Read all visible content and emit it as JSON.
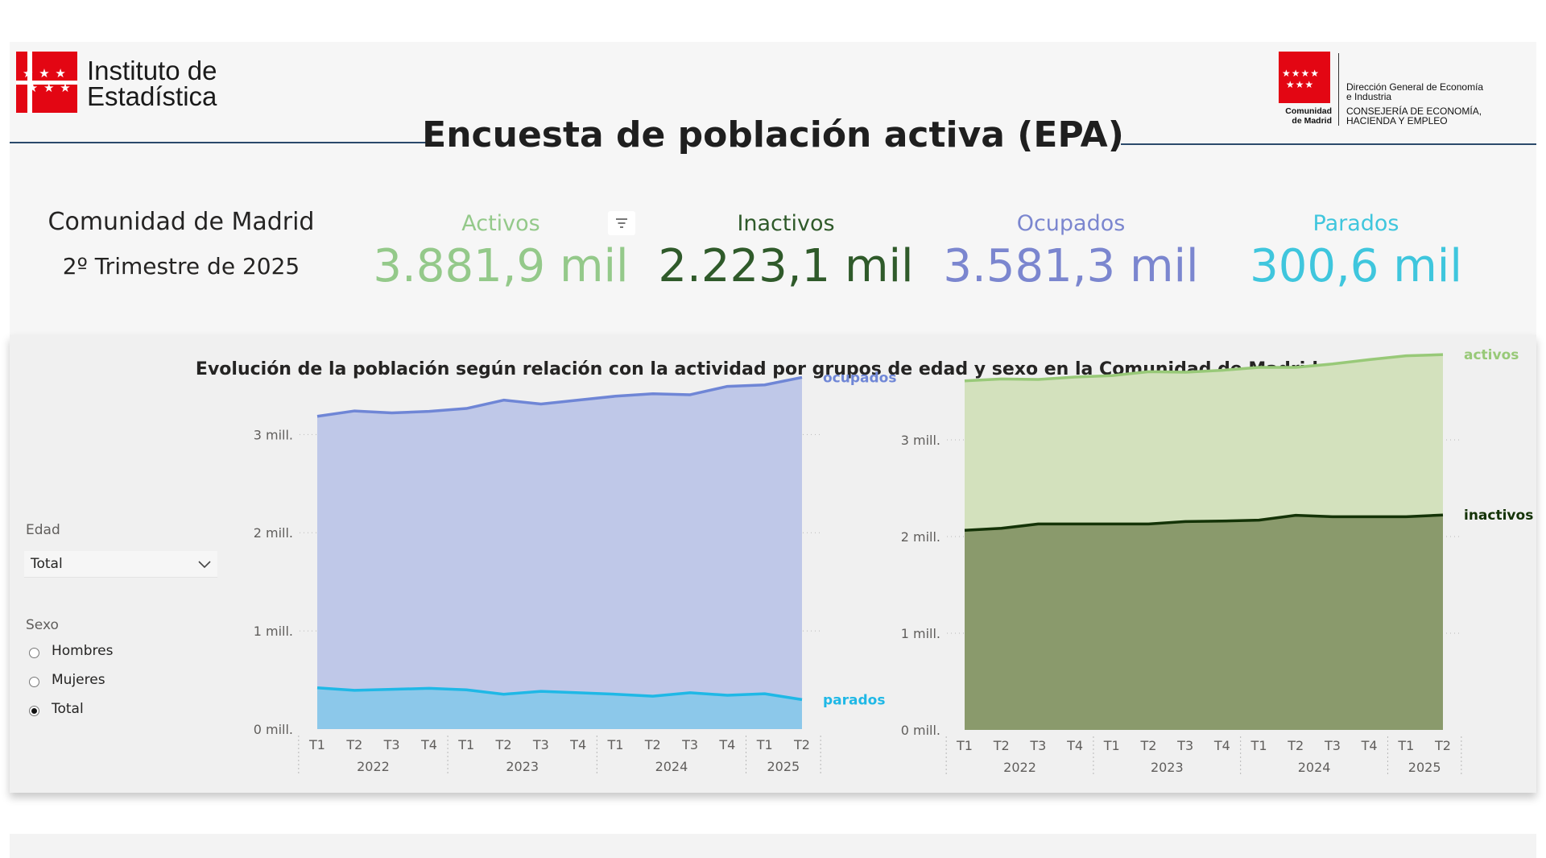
{
  "header": {
    "ine_logo_line1": "Instituto de",
    "ine_logo_line2": "Estadística",
    "cm_name_line1": "Comunidad",
    "cm_name_line2": "de Madrid",
    "cm_dept_line1": "Dirección General de Economía",
    "cm_dept_line2": "e Industria",
    "cm_dept_line3": "CONSEJERÍA DE ECONOMÍA,",
    "cm_dept_line4": "HACIENDA Y EMPLEO",
    "title": "Encuesta de población activa (EPA)"
  },
  "summary": {
    "region": "Comunidad de Madrid",
    "period": "2º Trimestre de 2025"
  },
  "kpis": [
    {
      "label": "Activos",
      "value": "3.881,9 mil",
      "color": "#94c98a"
    },
    {
      "label": "Inactivos",
      "value": "2.223,1 mil",
      "color": "#2f5a2a"
    },
    {
      "label": "Ocupados",
      "value": "3.581,3 mil",
      "color": "#7b86cf"
    },
    {
      "label": "Parados",
      "value": "300,6 mil",
      "color": "#3fc6dd"
    }
  ],
  "filter_icon": "filter-icon",
  "chart_section": {
    "title": "Evolución de la población según relación con la actividad por grupos de edad y sexo en la Comunidad de Madrid"
  },
  "filters": {
    "age_label": "Edad",
    "age_selected": "Total",
    "sex_label": "Sexo",
    "sex_options": [
      "Hombres",
      "Mujeres",
      "Total"
    ],
    "sex_selected": "Total"
  },
  "chart_data": [
    {
      "type": "area",
      "categories": [
        "T1",
        "T2",
        "T3",
        "T4",
        "T1",
        "T2",
        "T3",
        "T4",
        "T1",
        "T2",
        "T3",
        "T4",
        "T1",
        "T2"
      ],
      "year_labels": [
        "2022",
        "2023",
        "2024",
        "2025"
      ],
      "year_spans": [
        4,
        4,
        4,
        2
      ],
      "y_ticks": [
        "0 mill.",
        "1 mill.",
        "2 mill.",
        "3 mill."
      ],
      "ylim": [
        0,
        3700000
      ],
      "series": [
        {
          "name": "ocupados",
          "color": "#6f86d6",
          "fill": "#bfc8e8",
          "values": [
            3185000,
            3240000,
            3220000,
            3235000,
            3265000,
            3350000,
            3310000,
            3350000,
            3390000,
            3415000,
            3405000,
            3490000,
            3505000,
            3581300
          ]
        },
        {
          "name": "parados",
          "color": "#1fb8e6",
          "fill": "#8cc8ea",
          "values": [
            420000,
            395000,
            405000,
            415000,
            400000,
            355000,
            385000,
            370000,
            355000,
            335000,
            370000,
            345000,
            360000,
            300600
          ]
        }
      ]
    },
    {
      "type": "area",
      "categories": [
        "T1",
        "T2",
        "T3",
        "T4",
        "T1",
        "T2",
        "T3",
        "T4",
        "T1",
        "T2",
        "T3",
        "T4",
        "T1",
        "T2"
      ],
      "year_labels": [
        "2022",
        "2023",
        "2024",
        "2025"
      ],
      "year_spans": [
        4,
        4,
        4,
        2
      ],
      "y_ticks": [
        "0 mill.",
        "1 mill.",
        "2 mill.",
        "3 mill."
      ],
      "ylim": [
        0,
        3900000
      ],
      "series": [
        {
          "name": "activos",
          "color": "#98c978",
          "fill": "#d3e1bd",
          "values": [
            3610000,
            3630000,
            3625000,
            3650000,
            3665000,
            3705000,
            3700000,
            3720000,
            3750000,
            3750000,
            3785000,
            3830000,
            3870000,
            3881900
          ]
        },
        {
          "name": "inactivos",
          "color": "#143307",
          "fill": "#8a9a6c",
          "values": [
            2065000,
            2085000,
            2130000,
            2130000,
            2130000,
            2130000,
            2155000,
            2160000,
            2170000,
            2220000,
            2205000,
            2205000,
            2205000,
            2223100
          ]
        }
      ]
    }
  ]
}
